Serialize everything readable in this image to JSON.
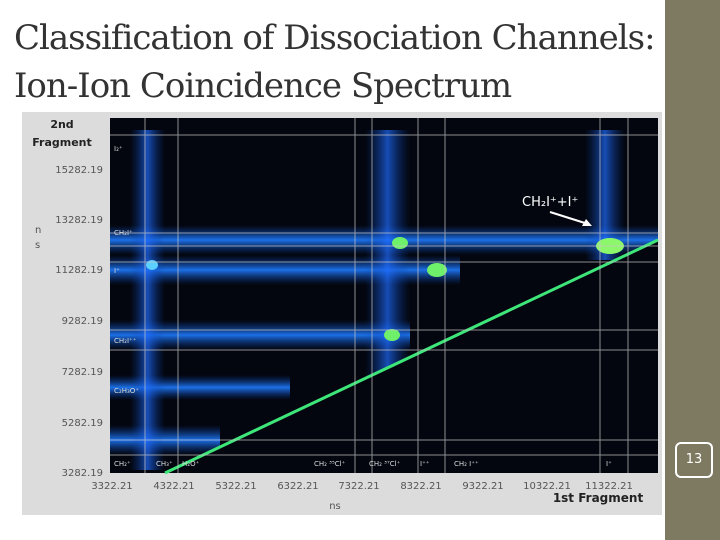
{
  "slide": {
    "title": [
      "Classification of Dissociation Channels:",
      "Ion-Ion Coincidence Spectrum"
    ],
    "page_number": "13"
  },
  "figure": {
    "y_axis_title": [
      "2nd",
      "Fragment"
    ],
    "y_unit": [
      "n",
      "s"
    ],
    "y_ticks": [
      "15282.19",
      "13282.19",
      "11282.19",
      "9282.19",
      "7282.19",
      "5282.19",
      "3282.19"
    ],
    "x_ticks": [
      "3322.21",
      "4322.21",
      "5322.21",
      "6322.21",
      "7322.21",
      "8322.21",
      "9322.21",
      "10322.21",
      "11322.21"
    ],
    "x_axis_title": "1st Fragment",
    "x_unit": "ns",
    "y_channels": [
      "I₂⁺",
      "CH₂I⁺",
      "I⁺",
      "CH₂I⁺⁺",
      "C₂H₃O⁺",
      "CH₂⁺"
    ],
    "x_channels": [
      "CH₃⁺",
      "H₂O⁺",
      "CH₂ ³⁵Cl⁺",
      "CH₂ ³⁷Cl⁺",
      "I⁺⁺",
      "CH₂ I⁺⁺",
      "I⁺"
    ],
    "annotation": "CH₂I⁺+I⁺"
  }
}
